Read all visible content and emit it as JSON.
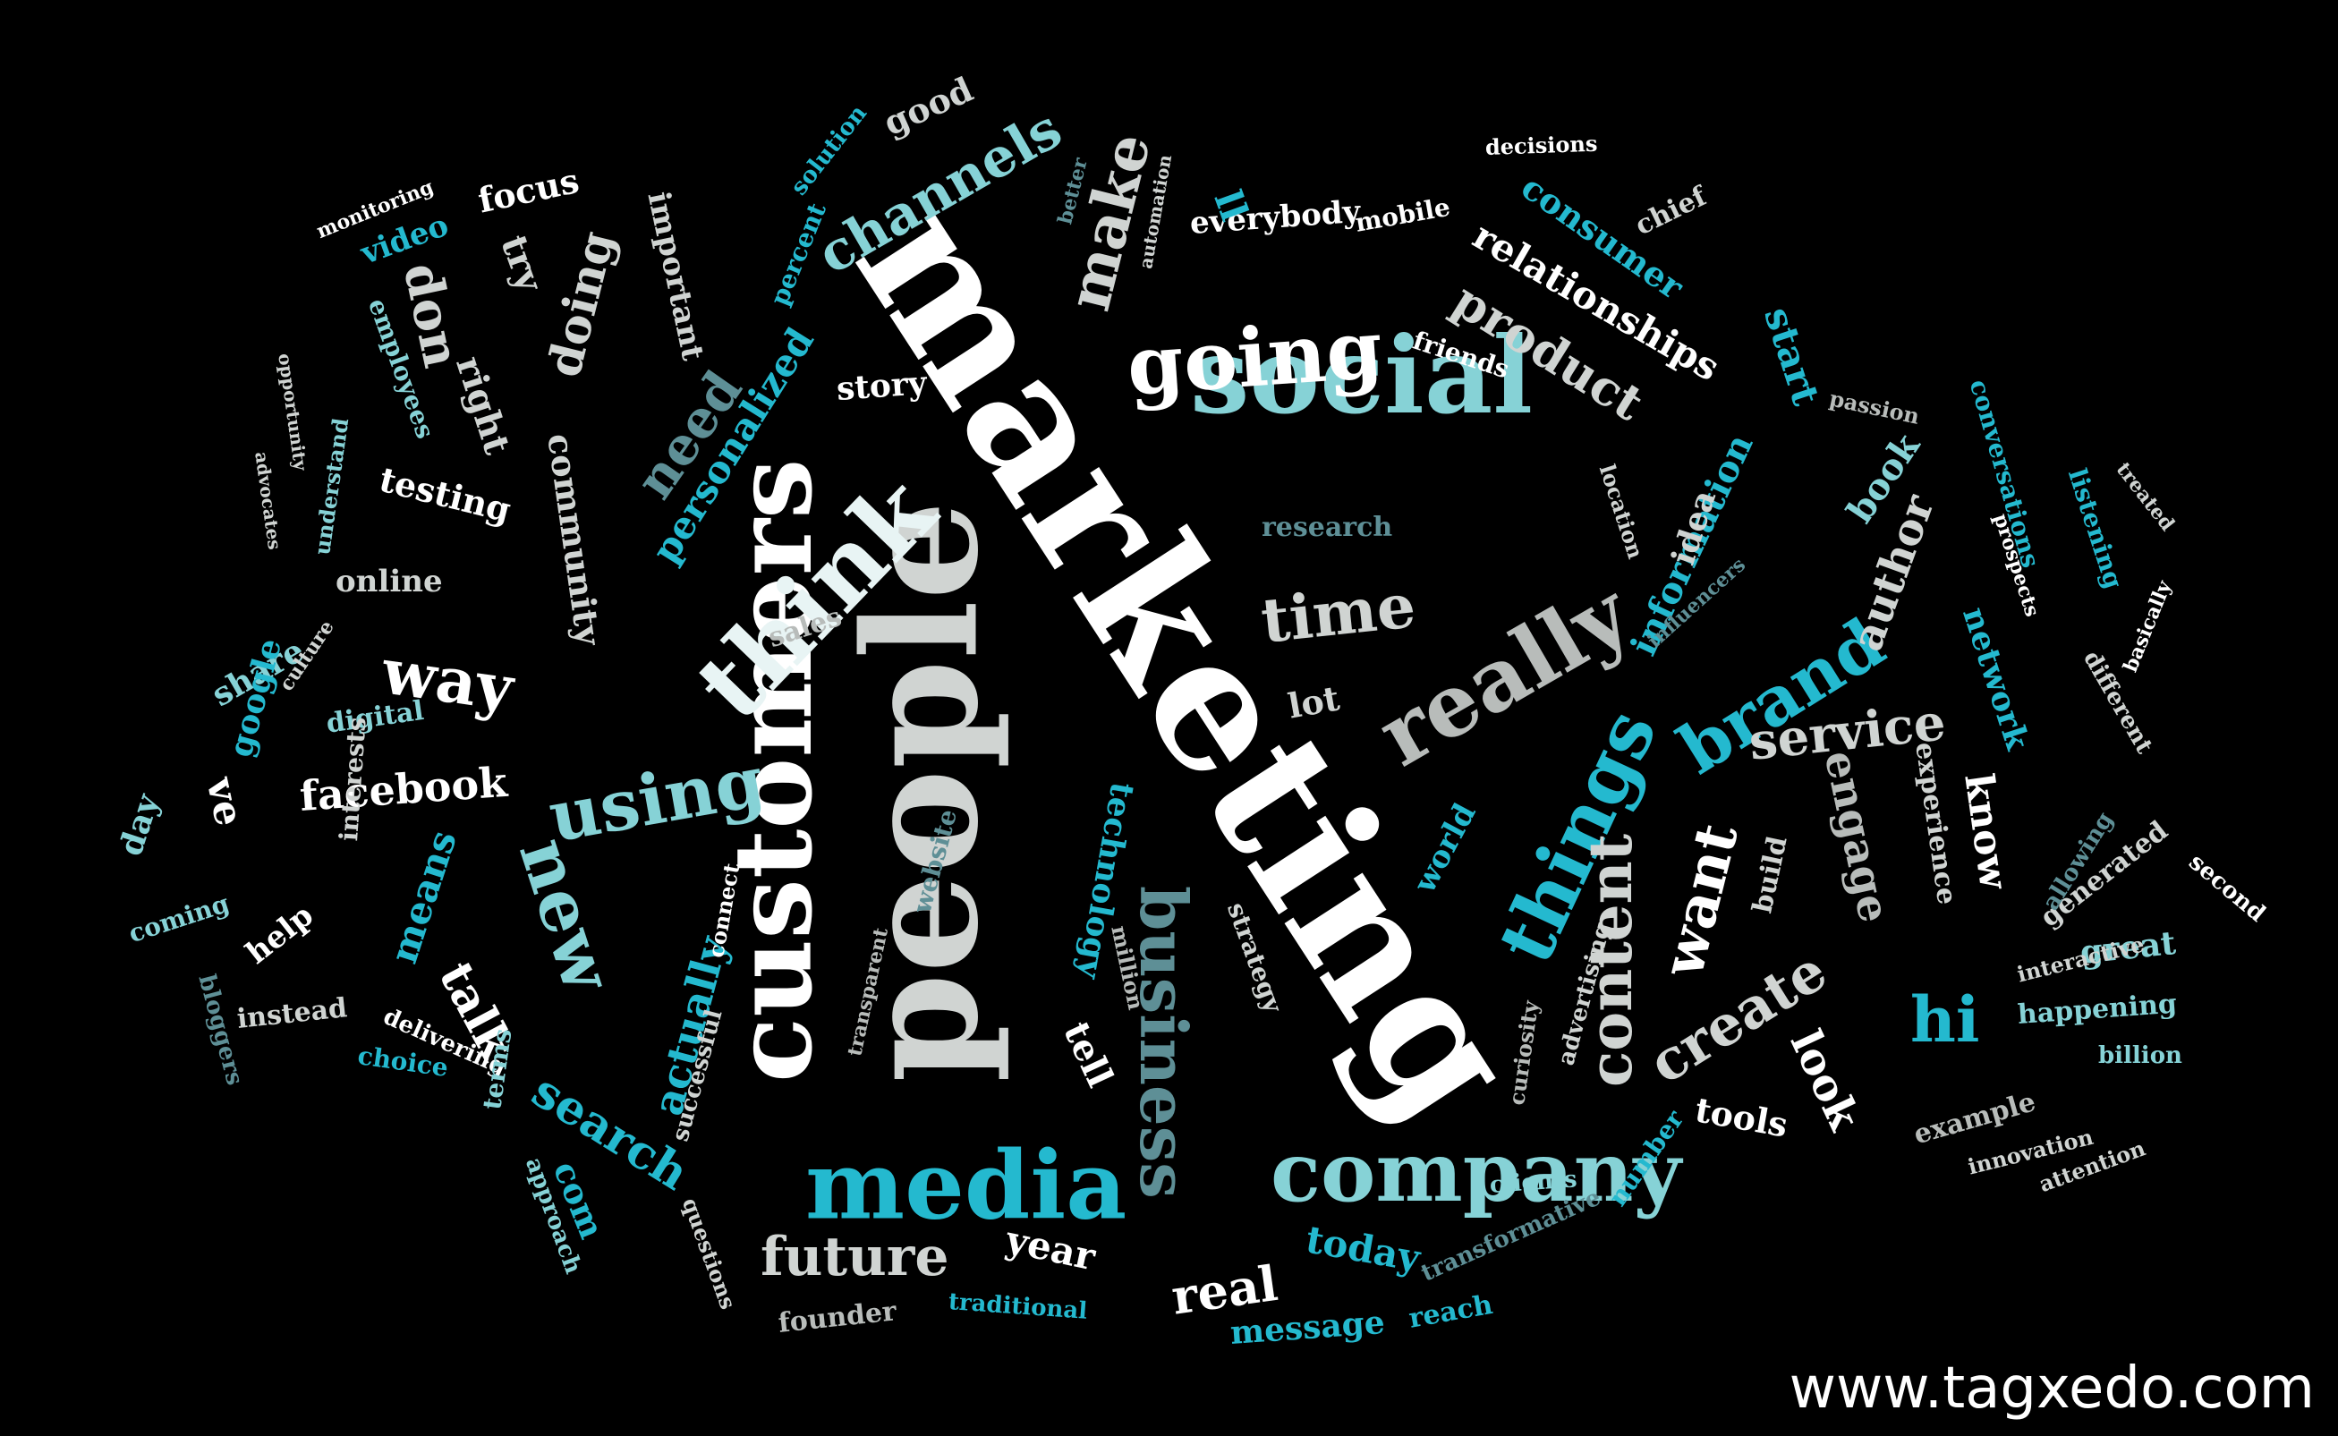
{
  "credit": "www.tagxedo.com",
  "colors": {
    "background": "#000000",
    "white": "#ffffff",
    "pale": "#e8f4f4",
    "light_gray": "#d0d4d2",
    "gray": "#b8bcba",
    "teal": "#86d2d6",
    "cyan": "#24b9cf",
    "slate": "#5e8f96"
  },
  "words": [
    "marketing",
    "people",
    "customers",
    "social",
    "think",
    "media",
    "company",
    "really",
    "going",
    "business",
    "things",
    "using",
    "brand",
    "new",
    "content",
    "time",
    "way",
    "want",
    "create",
    "make",
    "channels",
    "need",
    "service",
    "future",
    "search",
    "product",
    "relationships",
    "doing",
    "don",
    "engage",
    "look",
    "information",
    "actually",
    "talk",
    "author",
    "personalized",
    "consumer",
    "network",
    "know",
    "real",
    "start",
    "community",
    "facebook",
    "today",
    "means",
    "right",
    "testing",
    "important",
    "book",
    "everybody",
    "story",
    "sales",
    "research",
    "idea",
    "lot",
    "year",
    "message",
    "technology",
    "world",
    "tools",
    "com",
    "online",
    "share",
    "digital",
    "google",
    "day",
    "ve",
    "coming",
    "help",
    "instead",
    "choice",
    "delivering",
    "interests",
    "bloggers",
    "terms",
    "approach",
    "successful",
    "questions",
    "founder",
    "traditional",
    "clients",
    "number",
    "transformative",
    "reach",
    "hi",
    "great",
    "happening",
    "billion",
    "example",
    "innovation",
    "attention",
    "interactive",
    "generated",
    "second",
    "allowing",
    "different",
    "experience",
    "build",
    "advertising",
    "curiosity",
    "strategy",
    "million",
    "tell",
    "website",
    "transparent",
    "connect",
    "focus",
    "video",
    "monitoring",
    "try",
    "employees",
    "opportunity",
    "advocates",
    "understand",
    "culture",
    "good",
    "solution",
    "percent",
    "better",
    "automation",
    "ll",
    "mobile",
    "decisions",
    "chief",
    "friends",
    "passion",
    "location",
    "influencers",
    "conversations",
    "listening",
    "treated",
    "prospects",
    "basically"
  ]
}
